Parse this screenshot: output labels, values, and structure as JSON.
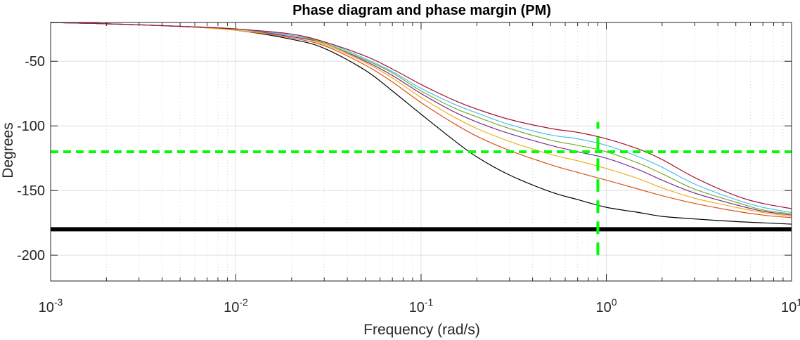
{
  "chart_data": {
    "type": "line",
    "title": "Phase diagram and phase margin (PM)",
    "xlabel": "Frequency (rad/s)",
    "ylabel": "Degrees",
    "x_scale": "log",
    "xlim": [
      0.001,
      10
    ],
    "ylim": [
      -220,
      -20
    ],
    "x_ticks": [
      {
        "value": 0.001,
        "base": "10",
        "exp": "-3"
      },
      {
        "value": 0.01,
        "base": "10",
        "exp": "-2"
      },
      {
        "value": 0.1,
        "base": "10",
        "exp": "-1"
      },
      {
        "value": 1,
        "base": "10",
        "exp": "0"
      },
      {
        "value": 10,
        "base": "10",
        "exp": "1"
      }
    ],
    "y_ticks": [
      {
        "value": -50,
        "label": "-50"
      },
      {
        "value": -100,
        "label": "-100"
      },
      {
        "value": -150,
        "label": "-150"
      },
      {
        "value": -200,
        "label": "-200"
      }
    ],
    "grid": true,
    "legend": "none",
    "x": [
      0.001,
      0.002,
      0.005,
      0.01,
      0.02,
      0.03,
      0.05,
      0.07,
      0.1,
      0.15,
      0.2,
      0.3,
      0.5,
      0.7,
      1,
      1.5,
      2,
      3,
      5,
      7,
      10
    ],
    "series": [
      {
        "color": "#000000",
        "values": [
          -20,
          -21,
          -23,
          -26,
          -33,
          -40,
          -57,
          -73,
          -91,
          -111,
          -124,
          -138,
          -151,
          -157,
          -163,
          -167,
          -170,
          -172,
          -174,
          -175,
          -176
        ]
      },
      {
        "color": "#d95319",
        "values": [
          -20,
          -21,
          -23,
          -26,
          -32,
          -38,
          -53,
          -66,
          -82,
          -98,
          -108,
          -119,
          -130,
          -136,
          -142,
          -149,
          -154,
          -160,
          -166,
          -169,
          -171
        ]
      },
      {
        "color": "#edb120",
        "values": [
          -20,
          -21,
          -23,
          -26,
          -31,
          -37,
          -51,
          -63,
          -78,
          -93,
          -102,
          -112,
          -122,
          -127,
          -133,
          -141,
          -148,
          -156,
          -163,
          -167,
          -170
        ]
      },
      {
        "color": "#7e2f8e",
        "values": [
          -20,
          -21,
          -23,
          -25,
          -31,
          -36,
          -50,
          -61,
          -75,
          -89,
          -97,
          -106,
          -115,
          -120,
          -125,
          -134,
          -142,
          -152,
          -161,
          -166,
          -169
        ]
      },
      {
        "color": "#77ac30",
        "values": [
          -20,
          -21,
          -23,
          -25,
          -30,
          -36,
          -49,
          -59,
          -73,
          -86,
          -93,
          -102,
          -111,
          -115,
          -120,
          -129,
          -137,
          -149,
          -159,
          -165,
          -168
        ]
      },
      {
        "color": "#4dbeee",
        "values": [
          -20,
          -21,
          -23,
          -25,
          -30,
          -35,
          -48,
          -58,
          -71,
          -83,
          -90,
          -99,
          -107,
          -110,
          -115,
          -124,
          -132,
          -145,
          -157,
          -163,
          -167
        ]
      },
      {
        "color": "#a2142f",
        "values": [
          -20,
          -21,
          -23,
          -25,
          -29,
          -35,
          -46,
          -56,
          -68,
          -80,
          -87,
          -95,
          -102,
          -105,
          -110,
          -118,
          -126,
          -140,
          -154,
          -160,
          -164
        ]
      }
    ],
    "reference_lines": [
      {
        "orientation": "horizontal",
        "value": -180,
        "color": "#000000",
        "style": "solid"
      },
      {
        "orientation": "horizontal",
        "value": -120,
        "color": "#00ff00",
        "style": "dashed"
      },
      {
        "orientation": "vertical",
        "value": 0.9,
        "from": -200,
        "to": -97,
        "color": "#00ff00",
        "style": "dashed"
      }
    ]
  }
}
